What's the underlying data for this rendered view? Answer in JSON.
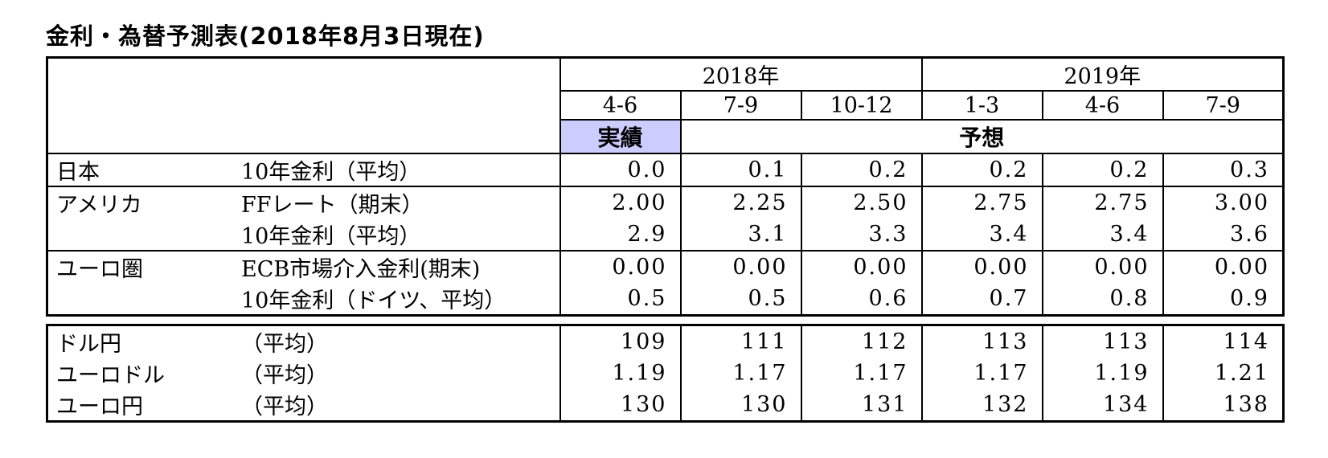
{
  "title": "金利・為替予測表(2018年8月3日現在)",
  "colors": {
    "actual_bg": "#ccccff",
    "border": "#000000",
    "text": "#000000",
    "background": "#ffffff"
  },
  "rates_table": {
    "year_headers": [
      {
        "label": "2018年",
        "span": 3
      },
      {
        "label": "2019年",
        "span": 3
      }
    ],
    "quarter_headers": [
      "4-6",
      "7-9",
      "10-12",
      "1-3",
      "4-6",
      "7-9"
    ],
    "actual_label": "実績",
    "forecast_label": "予想",
    "rows": [
      {
        "region": "日本",
        "metric": "10年金利（平均）",
        "values": [
          "0.0",
          "0.1",
          "0.2",
          "0.2",
          "0.2",
          "0.3"
        ],
        "section_start": true
      },
      {
        "region": "アメリカ",
        "metric": "FFレート（期末）",
        "values": [
          "2.00",
          "2.25",
          "2.50",
          "2.75",
          "2.75",
          "3.00"
        ],
        "section_start": true
      },
      {
        "region": "",
        "metric": "10年金利（平均）",
        "values": [
          "2.9",
          "3.1",
          "3.3",
          "3.4",
          "3.4",
          "3.6"
        ],
        "section_start": false
      },
      {
        "region": "ユーロ圏",
        "metric": "ECB市場介入金利(期末)",
        "values": [
          "0.00",
          "0.00",
          "0.00",
          "0.00",
          "0.00",
          "0.00"
        ],
        "section_start": true
      },
      {
        "region": "",
        "metric": "10年金利（ドイツ、平均）",
        "values": [
          "0.5",
          "0.5",
          "0.6",
          "0.7",
          "0.8",
          "0.9"
        ],
        "section_start": false
      }
    ]
  },
  "fx_table": {
    "rows": [
      {
        "pair": "ドル円",
        "metric": "（平均）",
        "values": [
          "109",
          "111",
          "112",
          "113",
          "113",
          "114"
        ]
      },
      {
        "pair": "ユーロドル",
        "metric": "（平均）",
        "values": [
          "1.19",
          "1.17",
          "1.17",
          "1.17",
          "1.19",
          "1.21"
        ]
      },
      {
        "pair": "ユーロ円",
        "metric": "（平均）",
        "values": [
          "130",
          "130",
          "131",
          "132",
          "134",
          "138"
        ]
      }
    ]
  },
  "chart_data": {
    "type": "table",
    "title": "金利・為替予測表(2018年8月3日現在)",
    "columns": [
      "2018年4-6(実績)",
      "2018年7-9",
      "2018年10-12",
      "2019年1-3",
      "2019年4-6",
      "2019年7-9"
    ],
    "series": [
      {
        "name": "日本 10年金利（平均）",
        "values": [
          0.0,
          0.1,
          0.2,
          0.2,
          0.2,
          0.3
        ]
      },
      {
        "name": "アメリカ FFレート（期末）",
        "values": [
          2.0,
          2.25,
          2.5,
          2.75,
          2.75,
          3.0
        ]
      },
      {
        "name": "アメリカ 10年金利（平均）",
        "values": [
          2.9,
          3.1,
          3.3,
          3.4,
          3.4,
          3.6
        ]
      },
      {
        "name": "ユーロ圏 ECB市場介入金利(期末)",
        "values": [
          0.0,
          0.0,
          0.0,
          0.0,
          0.0,
          0.0
        ]
      },
      {
        "name": "ユーロ圏 10年金利（ドイツ、平均）",
        "values": [
          0.5,
          0.5,
          0.6,
          0.7,
          0.8,
          0.9
        ]
      },
      {
        "name": "ドル円（平均）",
        "values": [
          109,
          111,
          112,
          113,
          113,
          114
        ]
      },
      {
        "name": "ユーロドル（平均）",
        "values": [
          1.19,
          1.17,
          1.17,
          1.17,
          1.19,
          1.21
        ]
      },
      {
        "name": "ユーロ円（平均）",
        "values": [
          130,
          130,
          131,
          132,
          134,
          138
        ]
      }
    ]
  }
}
